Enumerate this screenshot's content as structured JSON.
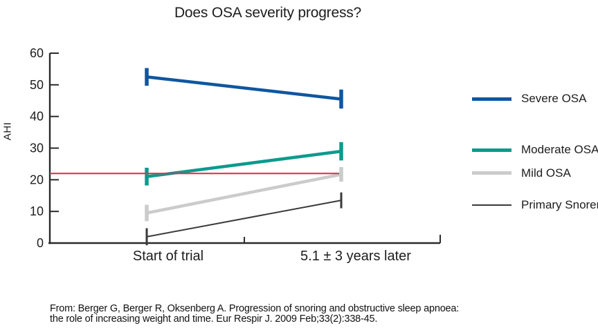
{
  "chart_data": {
    "type": "line",
    "title": "Does OSA severity progress?",
    "ylabel": "AHI",
    "xlabel": "",
    "categories": [
      "Start of trial",
      "5.1 ± 3 years later"
    ],
    "ylim": [
      0,
      60
    ],
    "yticks": [
      0,
      10,
      20,
      30,
      40,
      50,
      60
    ],
    "grid": false,
    "legend_position": "right",
    "series": [
      {
        "name": "Severe OSA",
        "color": "#0f569f",
        "line_width": 4.5,
        "values": [
          52.5,
          45.5
        ],
        "errors": [
          2.8,
          3.0
        ]
      },
      {
        "name": "Moderate OSA",
        "color": "#0a9b8d",
        "line_width": 4.5,
        "values": [
          21.0,
          29.0
        ],
        "errors": [
          2.8,
          2.9
        ]
      },
      {
        "name": "Mild OSA",
        "color": "#cbcbcb",
        "line_width": 4.5,
        "values": [
          9.5,
          21.7
        ],
        "errors": [
          2.6,
          2.3
        ]
      },
      {
        "name": "Primary Snorers",
        "color": "#3a3a3a",
        "line_width": 2,
        "values": [
          2.0,
          13.5
        ],
        "errors": [
          2.7,
          2.5
        ]
      }
    ],
    "reference_line": {
      "value": 22,
      "color": "#dd3355",
      "width": 2.2
    }
  },
  "citation": {
    "line1": "From: Berger G, Berger R, Oksenberg A. Progression of snoring and obstructive sleep apnoea:",
    "line2": "the role of increasing weight and time. Eur Respir J. 2009 Feb;33(2):338-45."
  }
}
